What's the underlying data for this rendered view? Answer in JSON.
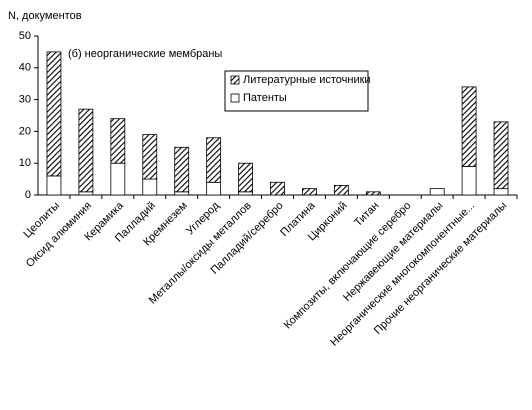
{
  "chart_data": {
    "type": "stacked_bar",
    "y_label": "N, документов",
    "annotation": "(б) неорганические мембраны",
    "categories": [
      "Цеолиты",
      "Оксид алюминия",
      "Керамика",
      "Палладий",
      "Кремнезем",
      "Углерод",
      "Металлы/оксиды металлов",
      "Палладий/серебро",
      "Платина",
      "Цирконий",
      "Титан",
      "Композиты, включающие серебро",
      "Нержавеющие материалы",
      "Неорганические многокомпонентные...",
      "Прочие неорганические материалы"
    ],
    "series": [
      {
        "name": "Литературные источники",
        "color": "#000000",
        "pattern": "hatch",
        "values": [
          39,
          26,
          14,
          14,
          14,
          14,
          9,
          4,
          2,
          3,
          1,
          0,
          0,
          25,
          21
        ]
      },
      {
        "name": "Патенты",
        "color": "#ffffff",
        "pattern": "solid",
        "values": [
          6,
          1,
          10,
          5,
          1,
          4,
          1,
          0,
          0,
          0,
          0,
          0,
          2,
          9,
          2
        ]
      }
    ],
    "ylim": [
      0,
      50
    ],
    "yticks": [
      0,
      10,
      20,
      30,
      40,
      50
    ],
    "grid": false
  }
}
